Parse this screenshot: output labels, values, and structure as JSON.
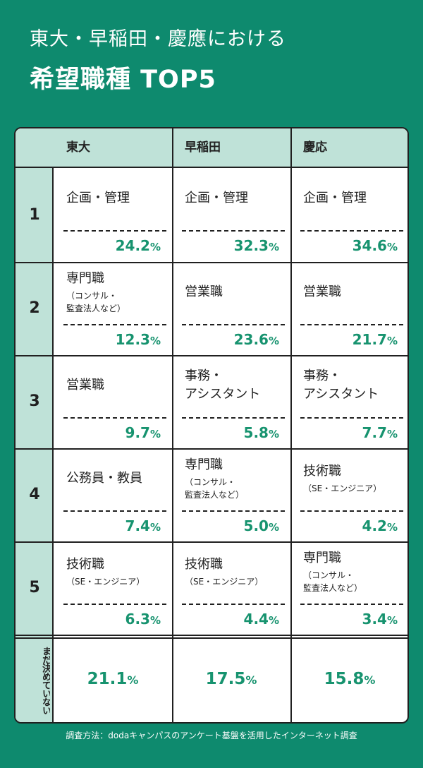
{
  "title": {
    "line1": "東大・早稲田・慶應における",
    "line2": "希望職種 TOP5"
  },
  "colors": {
    "background": "#0e8a6e",
    "header_fill": "#bfe2d8",
    "percent_text": "#17936f",
    "border": "#202020",
    "white": "#ffffff"
  },
  "chart_data": {
    "type": "table",
    "columns": [
      "東大",
      "早稲田",
      "慶応"
    ],
    "rows": [
      {
        "rank": "1",
        "cells": [
          {
            "main": [
              "企画・管理"
            ],
            "sub": [],
            "percent": "24.2",
            "unit": "%"
          },
          {
            "main": [
              "企画・管理"
            ],
            "sub": [],
            "percent": "32.3",
            "unit": "%"
          },
          {
            "main": [
              "企画・管理"
            ],
            "sub": [],
            "percent": "34.6",
            "unit": "%"
          }
        ]
      },
      {
        "rank": "2",
        "cells": [
          {
            "main": [
              "専門職"
            ],
            "sub": [
              "（コンサル・",
              "監査法人など）"
            ],
            "percent": "12.3",
            "unit": "%"
          },
          {
            "main": [
              "営業職"
            ],
            "sub": [],
            "percent": "23.6",
            "unit": "%"
          },
          {
            "main": [
              "営業職"
            ],
            "sub": [],
            "percent": "21.7",
            "unit": "%"
          }
        ]
      },
      {
        "rank": "3",
        "cells": [
          {
            "main": [
              "営業職"
            ],
            "sub": [],
            "percent": "9.7",
            "unit": "%"
          },
          {
            "main": [
              "事務・",
              "アシスタント"
            ],
            "sub": [],
            "percent": "5.8",
            "unit": "%"
          },
          {
            "main": [
              "事務・",
              "アシスタント"
            ],
            "sub": [],
            "percent": "7.7",
            "unit": "%"
          }
        ]
      },
      {
        "rank": "4",
        "cells": [
          {
            "main": [
              "公務員・教員"
            ],
            "sub": [],
            "percent": "7.4",
            "unit": "%"
          },
          {
            "main": [
              "専門職"
            ],
            "sub": [
              "（コンサル・",
              "監査法人など）"
            ],
            "percent": "5.0",
            "unit": "%"
          },
          {
            "main": [
              "技術職"
            ],
            "sub": [
              "（SE・エンジニア）"
            ],
            "percent": "4.2",
            "unit": "%"
          }
        ]
      },
      {
        "rank": "5",
        "cells": [
          {
            "main": [
              "技術職"
            ],
            "sub": [
              "（SE・エンジニア）"
            ],
            "percent": "6.3",
            "unit": "%"
          },
          {
            "main": [
              "技術職"
            ],
            "sub": [
              "（SE・エンジニア）"
            ],
            "percent": "4.4",
            "unit": "%"
          },
          {
            "main": [
              "専門職"
            ],
            "sub": [
              "（コンサル・",
              "監査法人など）"
            ],
            "percent": "3.4",
            "unit": "%"
          }
        ]
      }
    ],
    "undecided": {
      "label": "まだ決めていない",
      "values": [
        {
          "percent": "21.1",
          "unit": "%"
        },
        {
          "percent": "17.5",
          "unit": "%"
        },
        {
          "percent": "15.8",
          "unit": "%"
        }
      ]
    }
  },
  "footer": "調査方法：dodaキャンパスのアンケート基盤を活用したインターネット調査"
}
